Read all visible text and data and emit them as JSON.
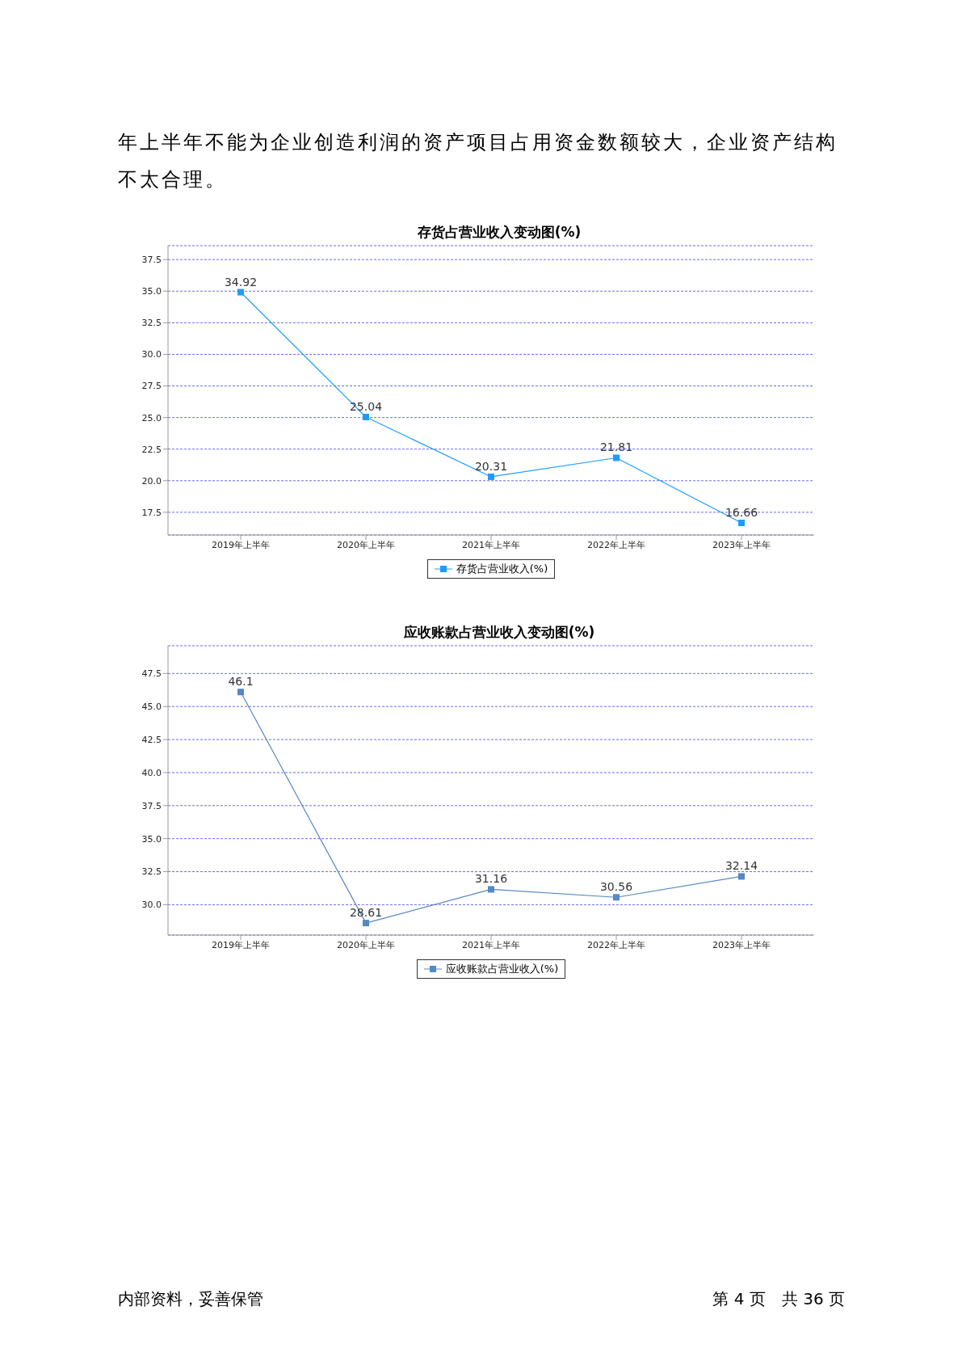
{
  "chart_data": [
    {
      "type": "line",
      "title": "存货占营业收入变动图(%)",
      "annotations": [
        "年上半年不能为企业创造利润的资产项目占用资金数额较大，企业资产结构不太合理。"
      ],
      "categories": [
        "2019年上半年",
        "2020年上半年",
        "2021年上半年",
        "2022年上半年",
        "2023年上半年"
      ],
      "series": [
        {
          "name": "存货占营业收入(%)",
          "color": "#1e9bff",
          "values": [
            34.92,
            25.04,
            20.31,
            21.81,
            16.66
          ]
        }
      ],
      "ylim": [
        15.7,
        38.6
      ],
      "yticks": [
        {
          "value": 17.5,
          "label": "17.5"
        },
        {
          "value": 20,
          "label": "20.0"
        },
        {
          "value": 22.5,
          "label": "22.5"
        },
        {
          "value": 25,
          "label": "25.0"
        },
        {
          "value": 27.5,
          "label": "27.5"
        },
        {
          "value": 30,
          "label": "30.0"
        },
        {
          "value": 32.5,
          "label": "32.5"
        },
        {
          "value": 35,
          "label": "35.0"
        },
        {
          "value": 37.5,
          "label": "37.5"
        }
      ],
      "grid": "y",
      "legend": "bottom",
      "marker": "square",
      "line_style": "solid",
      "data_labels": true
    },
    {
      "type": "line",
      "title": "应收账款占营业收入变动图(%)",
      "annotations": [
        "内部资料，妥善保管",
        "第 4 页　共 36 页"
      ],
      "categories": [
        "2019年上半年",
        "2020年上半年",
        "2021年上半年",
        "2022年上半年",
        "2023年上半年"
      ],
      "series": [
        {
          "name": "应收账款占营业收入(%)",
          "color": "#5588c4",
          "values": [
            46.1,
            28.61,
            31.16,
            30.56,
            32.14
          ]
        }
      ],
      "ylim": [
        27.7,
        49.6
      ],
      "yticks": [
        {
          "value": 30,
          "label": "30.0"
        },
        {
          "value": 32.5,
          "label": "32.5"
        },
        {
          "value": 35,
          "label": "35.0"
        },
        {
          "value": 37.5,
          "label": "37.5"
        },
        {
          "value": 40,
          "label": "40.0"
        },
        {
          "value": 42.5,
          "label": "42.5"
        },
        {
          "value": 45,
          "label": "45.0"
        },
        {
          "value": 47.5,
          "label": "47.5"
        }
      ],
      "grid": "y",
      "legend": "bottom",
      "marker": "square",
      "line_style": "solid",
      "data_labels": true
    }
  ]
}
